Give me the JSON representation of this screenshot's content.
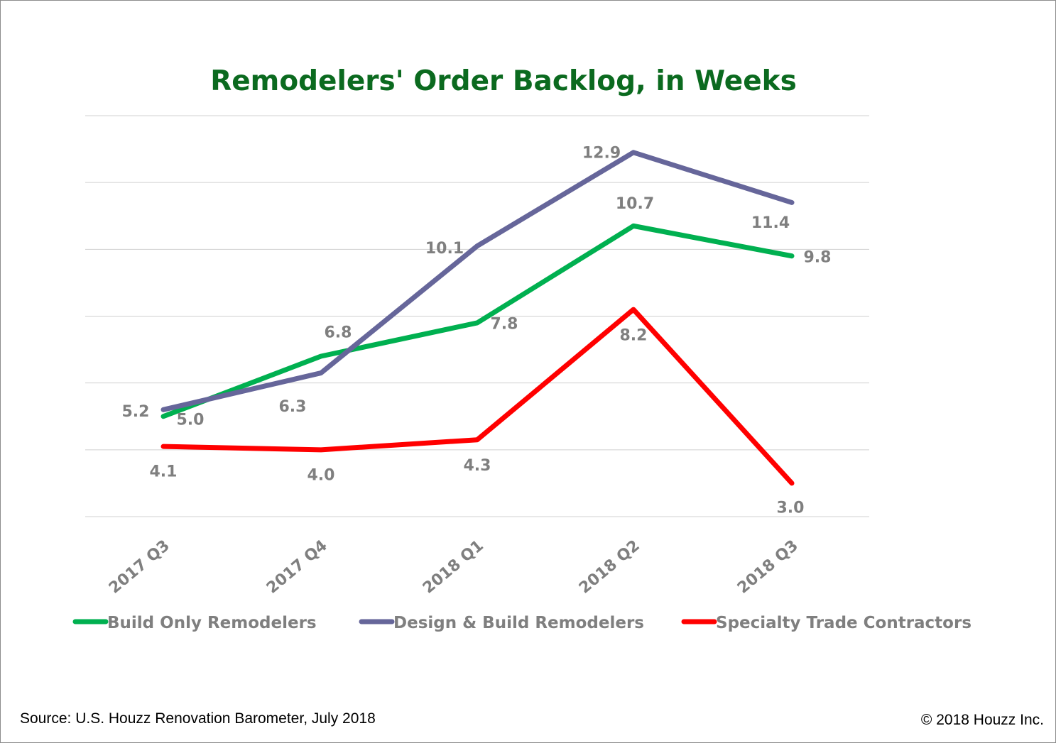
{
  "chart_data": {
    "type": "line",
    "title": "Remodelers' Order Backlog, in Weeks",
    "categories": [
      "2017 Q3",
      "2017 Q4",
      "2018 Q1",
      "2018 Q2",
      "2018 Q3"
    ],
    "ylim": [
      2,
      14
    ],
    "y_gridlines": [
      2,
      4,
      6,
      8,
      10,
      12,
      14
    ],
    "grid": true,
    "y_tick_labels_shown": false,
    "legend_position": "bottom",
    "series": [
      {
        "name": "Build Only Remodelers",
        "color": "#00b050",
        "values": [
          5.0,
          6.8,
          7.8,
          10.7,
          9.8
        ],
        "labels": [
          "5.0",
          "6.8",
          "7.8",
          "10.7",
          "9.8"
        ]
      },
      {
        "name": "Design & Build Remodelers",
        "color": "#66669a",
        "values": [
          5.2,
          6.3,
          10.1,
          12.9,
          11.4
        ],
        "labels": [
          "5.2",
          "6.3",
          "10.1",
          "12.9",
          "11.4"
        ]
      },
      {
        "name": "Specialty Trade Contractors",
        "color": "#ff0000",
        "values": [
          4.1,
          4.0,
          4.3,
          8.2,
          3.0
        ],
        "labels": [
          "4.1",
          "4.0",
          "4.3",
          "8.2",
          "3.0"
        ]
      }
    ]
  },
  "footer": {
    "source": "Source: U.S. Houzz Renovation Barometer, July 2018",
    "copyright": "© 2018 Houzz Inc."
  }
}
